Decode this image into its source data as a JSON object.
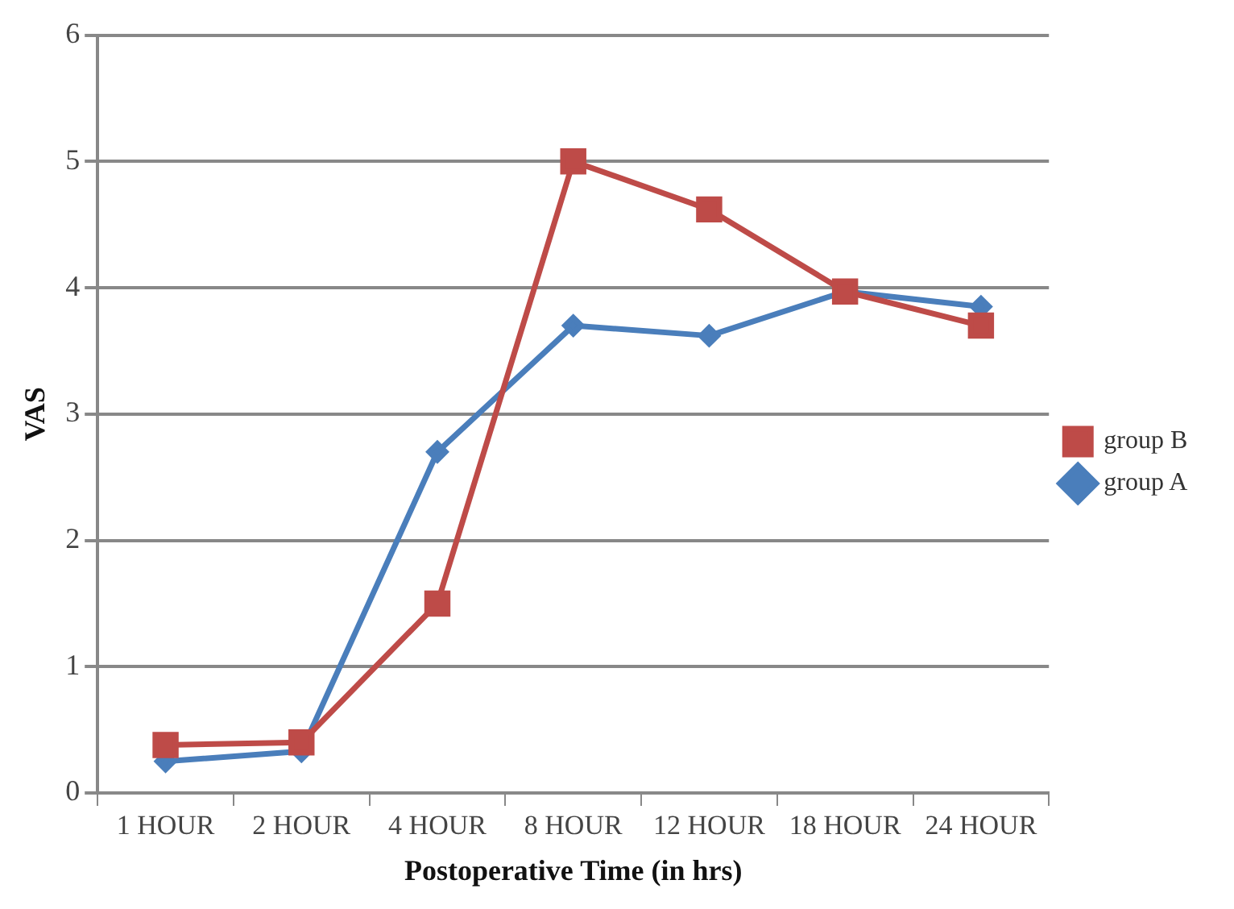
{
  "chart_data": {
    "type": "line",
    "categories": [
      "1 HOUR",
      "2 HOUR",
      "4 HOUR",
      "8 HOUR",
      "12 HOUR",
      "18 HOUR",
      "24 HOUR"
    ],
    "series": [
      {
        "name": "group A",
        "color": "#4a7ebb",
        "marker": "diamond",
        "values": [
          0.25,
          0.33,
          2.7,
          3.7,
          3.62,
          3.97,
          3.85
        ]
      },
      {
        "name": "group B",
        "color": "#be4b48",
        "marker": "square",
        "values": [
          0.38,
          0.4,
          1.5,
          5.0,
          4.62,
          3.97,
          3.7
        ]
      }
    ],
    "xlabel": "Postoperative Time (in hrs)",
    "ylabel": "VAS",
    "ylim": [
      0,
      6
    ],
    "yticks": [
      0,
      1,
      2,
      3,
      4,
      5,
      6
    ],
    "grid": "y",
    "legend": "right",
    "line_style": "solid"
  }
}
